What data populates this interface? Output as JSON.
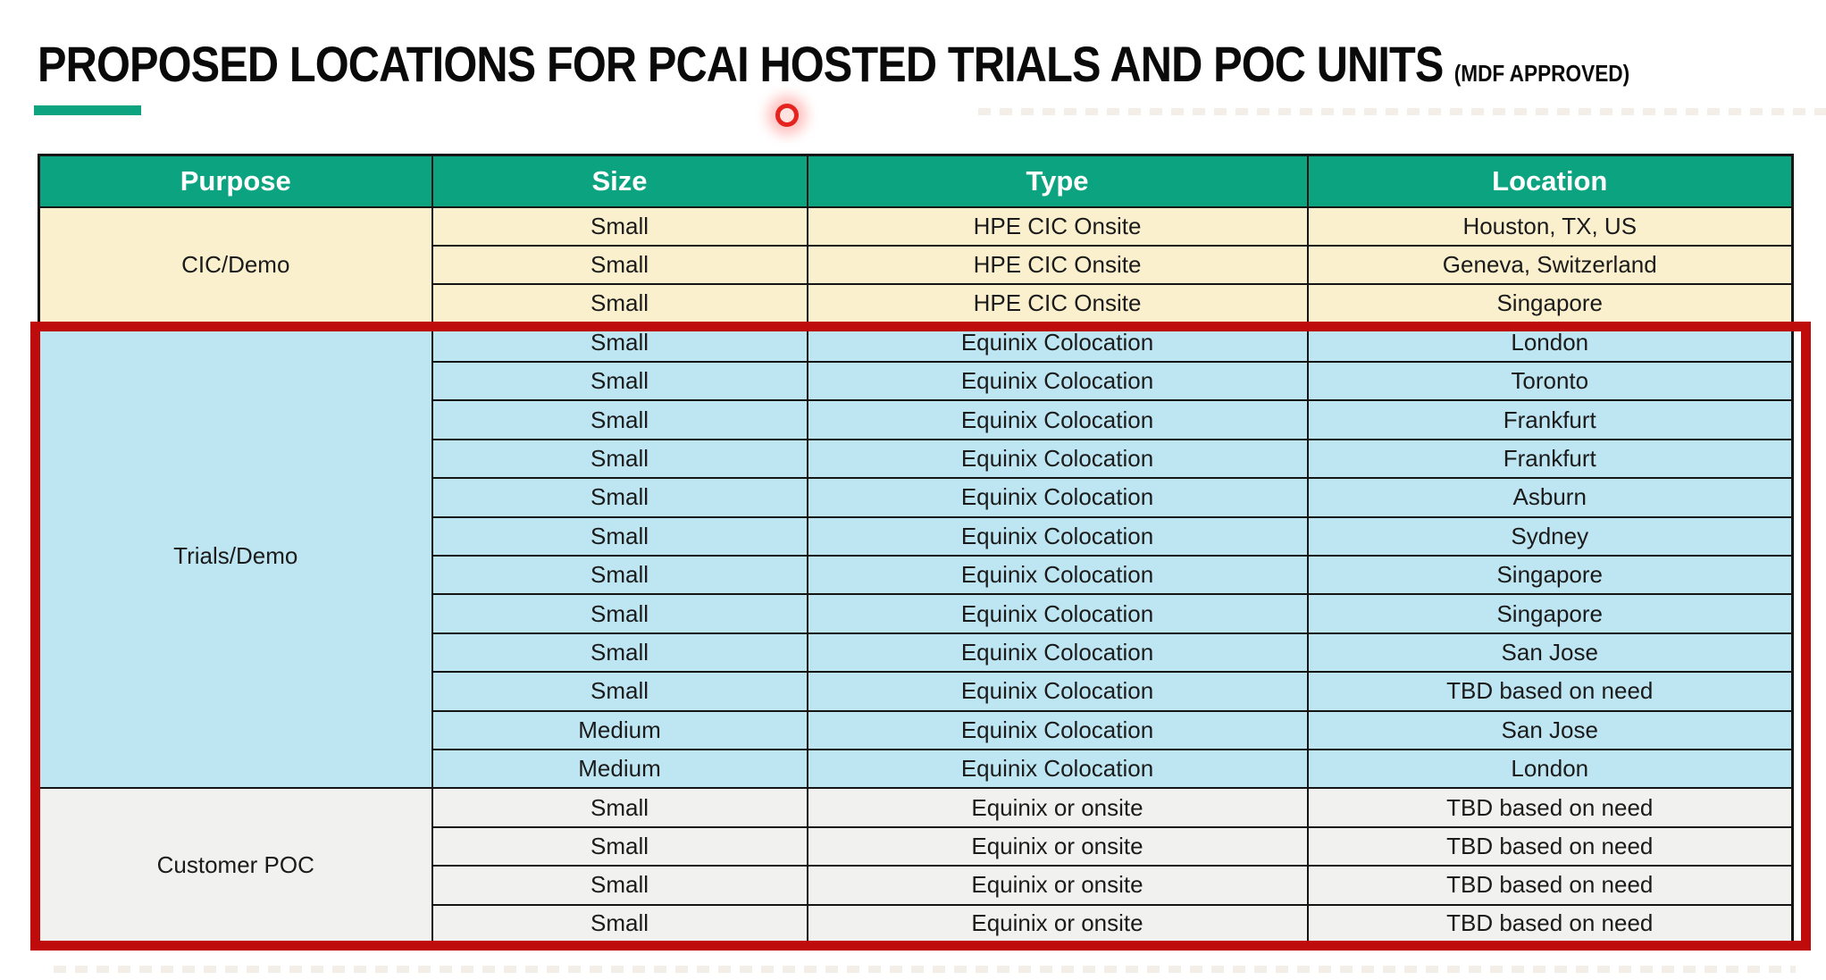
{
  "title": {
    "main": "PROPOSED LOCATIONS FOR PCAI HOSTED TRIALS AND POC UNITS",
    "suffix": "(MDF APPROVED)"
  },
  "colors": {
    "header_green": "#0CA480",
    "accent_green": "#0CA480",
    "cic_demo_bg": "#FBF0CE",
    "trials_demo_bg": "#BEE6F2",
    "customer_poc_bg": "#F1F1F0",
    "highlight_red": "#BE0B0B",
    "laser_red": "#E5241F",
    "grid_black": "#151515"
  },
  "table": {
    "columns": [
      "Purpose",
      "Size",
      "Type",
      "Location"
    ],
    "sections": [
      {
        "purpose": "CIC/Demo",
        "bg_key": "cic_demo_bg",
        "highlighted": false,
        "rows": [
          [
            "Small",
            "HPE CIC Onsite",
            "Houston, TX, US"
          ],
          [
            "Small",
            "HPE CIC Onsite",
            "Geneva, Switzerland"
          ],
          [
            "Small",
            "HPE CIC Onsite",
            "Singapore"
          ]
        ]
      },
      {
        "purpose": "Trials/Demo",
        "bg_key": "trials_demo_bg",
        "highlighted": true,
        "rows": [
          [
            "Small",
            "Equinix Colocation",
            "London"
          ],
          [
            "Small",
            "Equinix Colocation",
            "Toronto"
          ],
          [
            "Small",
            "Equinix Colocation",
            "Frankfurt"
          ],
          [
            "Small",
            "Equinix Colocation",
            "Frankfurt"
          ],
          [
            "Small",
            "Equinix Colocation",
            "Asburn"
          ],
          [
            "Small",
            "Equinix Colocation",
            "Sydney"
          ],
          [
            "Small",
            "Equinix Colocation",
            "Singapore"
          ],
          [
            "Small",
            "Equinix Colocation",
            "Singapore"
          ],
          [
            "Small",
            "Equinix Colocation",
            "San Jose"
          ],
          [
            "Small",
            "Equinix Colocation",
            "TBD based on need"
          ],
          [
            "Medium",
            "Equinix Colocation",
            "San Jose"
          ],
          [
            "Medium",
            "Equinix Colocation",
            "London"
          ]
        ]
      },
      {
        "purpose": "Customer POC",
        "bg_key": "customer_poc_bg",
        "highlighted": true,
        "rows": [
          [
            "Small",
            "Equinix or onsite",
            "TBD based on need"
          ],
          [
            "Small",
            "Equinix or onsite",
            "TBD based on need"
          ],
          [
            "Small",
            "Equinix or onsite",
            "TBD based on need"
          ],
          [
            "Small",
            "Equinix or onsite",
            "TBD based on need"
          ]
        ]
      }
    ]
  }
}
